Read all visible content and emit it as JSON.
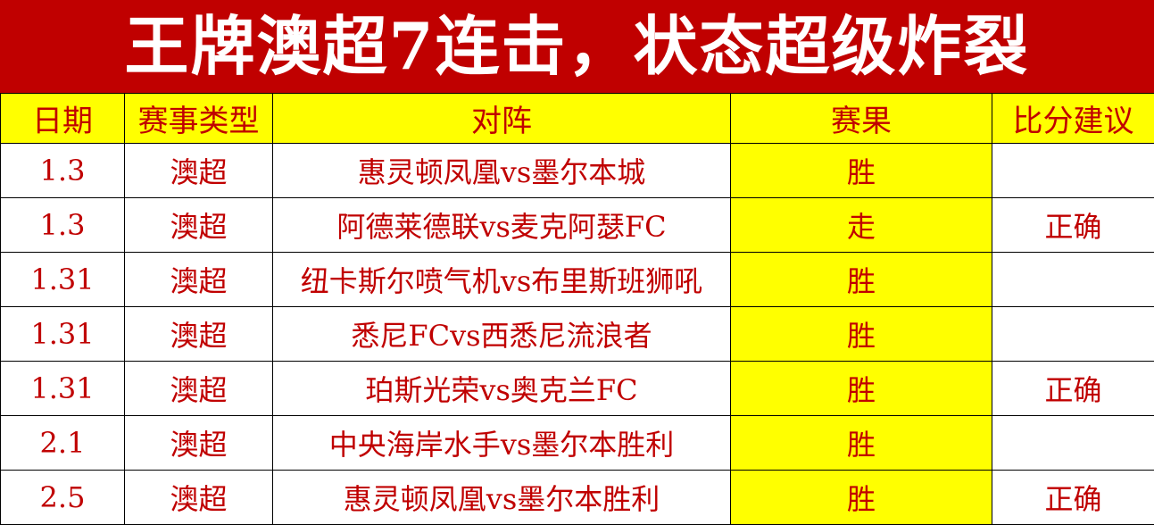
{
  "title": "王牌澳超7连击，状态超级炸裂",
  "headers": [
    "日期",
    "赛事类型",
    "对阵",
    "赛果",
    "比分建议"
  ],
  "rows": [
    {
      "date": "1.3",
      "type": "澳超",
      "match": "惠灵顿凤凰vs墨尔本城",
      "result": "胜",
      "score": ""
    },
    {
      "date": "1.3",
      "type": "澳超",
      "match": "阿德莱德联vs麦克阿瑟FC",
      "result": "走",
      "score": "正确"
    },
    {
      "date": "1.31",
      "type": "澳超",
      "match": "纽卡斯尔喷气机vs布里斯班狮吼",
      "result": "胜",
      "score": ""
    },
    {
      "date": "1.31",
      "type": "澳超",
      "match": "悉尼FCvs西悉尼流浪者",
      "result": "胜",
      "score": ""
    },
    {
      "date": "1.31",
      "type": "澳超",
      "match": "珀斯光荣vs奥克兰FC",
      "result": "胜",
      "score": "正确"
    },
    {
      "date": "2.1",
      "type": "澳超",
      "match": "中央海岸水手vs墨尔本胜利",
      "result": "胜",
      "score": ""
    },
    {
      "date": "2.5",
      "type": "澳超",
      "match": "惠灵顿凤凰vs墨尔本胜利",
      "result": "胜",
      "score": "正确"
    }
  ],
  "colors": {
    "title_bg": "#c00000",
    "header_bg": "#ffff00",
    "text": "#c00000"
  }
}
